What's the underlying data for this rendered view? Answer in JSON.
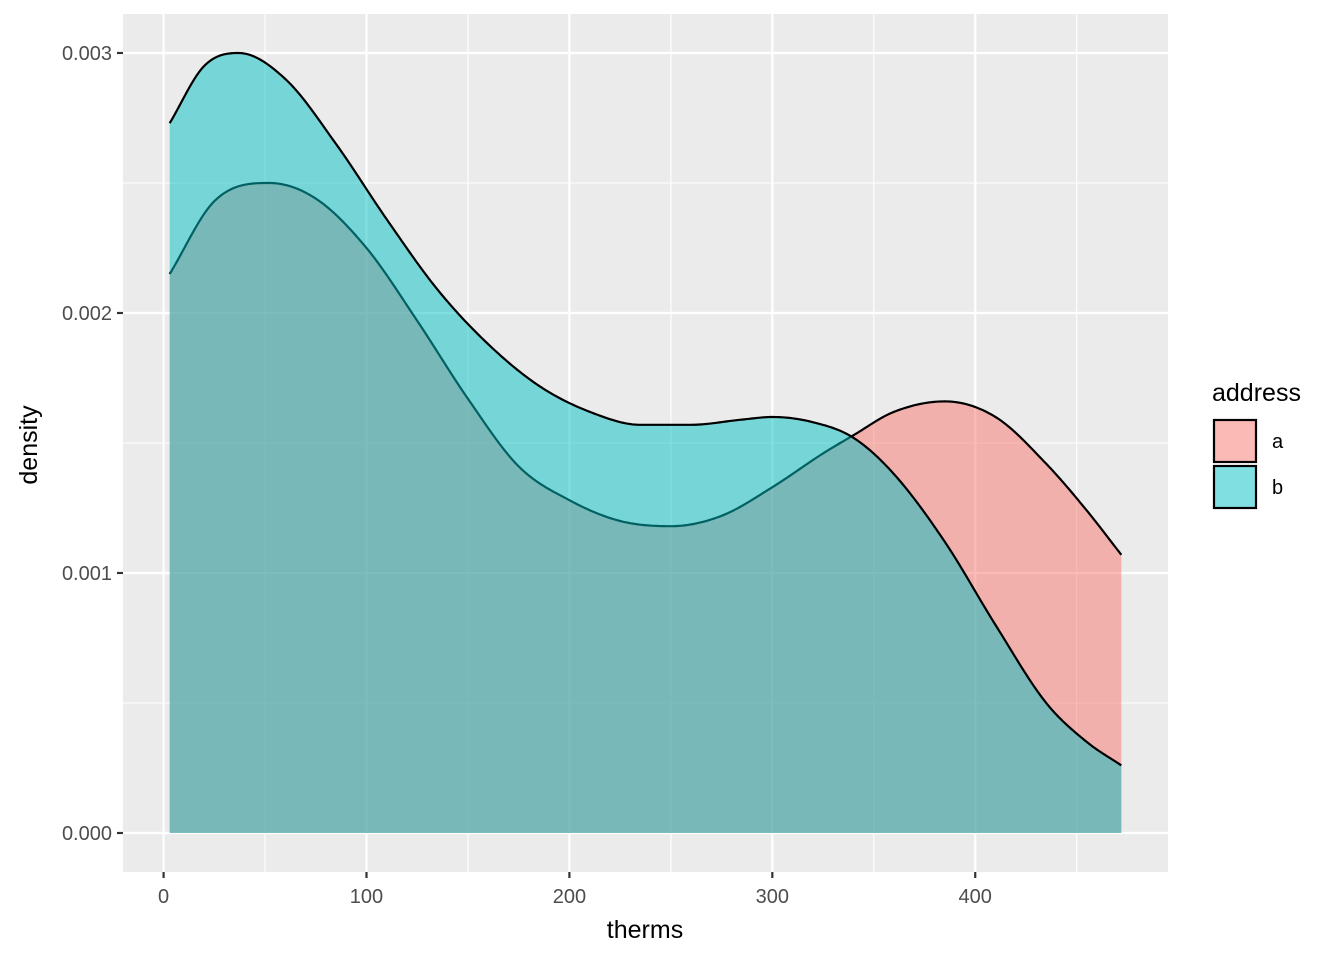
{
  "chart_data": {
    "type": "area",
    "subtype": "density",
    "title": "",
    "xlabel": "therms",
    "ylabel": "density",
    "xlim": [
      -20,
      495
    ],
    "ylim": [
      -0.00015,
      0.00315
    ],
    "x_ticks": [
      0,
      100,
      200,
      300,
      400
    ],
    "y_ticks": [
      0.0,
      0.001,
      0.002,
      0.003
    ],
    "x_tick_labels": [
      "0",
      "100",
      "200",
      "300",
      "400"
    ],
    "y_tick_labels": [
      "0.000",
      "0.001",
      "0.002",
      "0.003"
    ],
    "grid": true,
    "legend": {
      "title": "address",
      "position": "right",
      "entries": [
        "a",
        "b"
      ]
    },
    "series": [
      {
        "name": "a",
        "color": "#F8766D",
        "alpha": 0.5,
        "x": [
          3,
          25,
          52,
          75,
          100,
          125,
          150,
          175,
          200,
          225,
          250,
          275,
          300,
          325,
          340,
          360,
          385,
          410,
          435,
          455,
          472
        ],
        "y": [
          0.00215,
          0.00243,
          0.0025,
          0.00244,
          0.00225,
          0.00197,
          0.00167,
          0.00141,
          0.00128,
          0.0012,
          0.00118,
          0.00122,
          0.00133,
          0.00146,
          0.00153,
          0.00162,
          0.00166,
          0.0016,
          0.00142,
          0.00124,
          0.00107
        ]
      },
      {
        "name": "b",
        "color": "#00BFC4",
        "alpha": 0.5,
        "x": [
          3,
          20,
          37,
          60,
          85,
          110,
          135,
          160,
          185,
          210,
          235,
          260,
          285,
          300,
          320,
          340,
          360,
          385,
          410,
          435,
          455,
          472
        ],
        "y": [
          0.00273,
          0.00295,
          0.003,
          0.0029,
          0.00265,
          0.00236,
          0.00209,
          0.00188,
          0.00172,
          0.00162,
          0.00157,
          0.00157,
          0.00159,
          0.0016,
          0.00158,
          0.00152,
          0.00138,
          0.00112,
          0.0008,
          0.0005,
          0.00035,
          0.00026
        ]
      }
    ]
  },
  "colors": {
    "panel_background": "#EBEBEB",
    "grid_major": "#FFFFFF",
    "a": "#F8766D",
    "b": "#00BFC4"
  }
}
